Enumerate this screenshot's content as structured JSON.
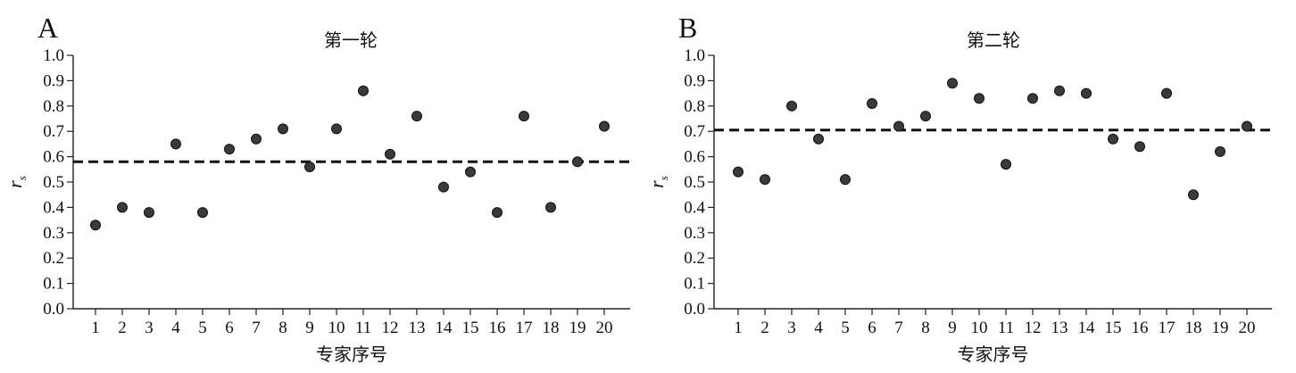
{
  "chart_data": [
    {
      "type": "scatter",
      "panel": "A",
      "title": "第一轮",
      "xlabel": "专家序号",
      "ylabel": "r",
      "ylabel_sub": "s",
      "x": [
        1,
        2,
        3,
        4,
        5,
        6,
        7,
        8,
        9,
        10,
        11,
        12,
        13,
        14,
        15,
        16,
        17,
        18,
        19,
        20
      ],
      "values": [
        0.33,
        0.4,
        0.38,
        0.65,
        0.38,
        0.63,
        0.67,
        0.71,
        0.56,
        0.71,
        0.86,
        0.61,
        0.76,
        0.48,
        0.54,
        0.38,
        0.76,
        0.4,
        0.58,
        0.72
      ],
      "mean_line": 0.58,
      "ylim": [
        0,
        1.0
      ],
      "yticks": [
        "0.0",
        "0.1",
        "0.2",
        "0.3",
        "0.4",
        "0.5",
        "0.6",
        "0.7",
        "0.8",
        "0.9",
        "1.0"
      ],
      "xticks": [
        "1",
        "2",
        "3",
        "4",
        "5",
        "6",
        "7",
        "8",
        "9",
        "10",
        "11",
        "12",
        "13",
        "14",
        "15",
        "16",
        "17",
        "18",
        "19",
        "20"
      ]
    },
    {
      "type": "scatter",
      "panel": "B",
      "title": "第二轮",
      "xlabel": "专家序号",
      "ylabel": "r",
      "ylabel_sub": "s",
      "x": [
        1,
        2,
        3,
        4,
        5,
        6,
        7,
        8,
        9,
        10,
        11,
        12,
        13,
        14,
        15,
        16,
        17,
        18,
        19,
        20
      ],
      "values": [
        0.54,
        0.51,
        0.8,
        0.67,
        0.51,
        0.81,
        0.72,
        0.76,
        0.89,
        0.83,
        0.57,
        0.83,
        0.86,
        0.85,
        0.67,
        0.64,
        0.85,
        0.45,
        0.62,
        0.72
      ],
      "mean_line": 0.705,
      "ylim": [
        0,
        1.0
      ],
      "yticks": [
        "0.0",
        "0.1",
        "0.2",
        "0.3",
        "0.4",
        "0.5",
        "0.6",
        "0.7",
        "0.8",
        "0.9",
        "1.0"
      ],
      "xticks": [
        "1",
        "2",
        "3",
        "4",
        "5",
        "6",
        "7",
        "8",
        "9",
        "10",
        "11",
        "12",
        "13",
        "14",
        "15",
        "16",
        "17",
        "18",
        "19",
        "20"
      ]
    }
  ]
}
